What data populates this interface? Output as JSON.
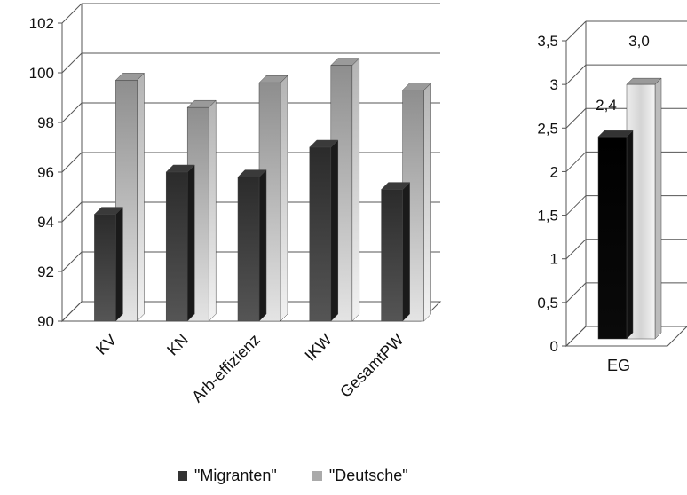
{
  "chart_data": [
    {
      "type": "bar",
      "categories": [
        "KV",
        "KN",
        "Arb-effizienz",
        "IKW",
        "GesamtPW"
      ],
      "series": [
        {
          "name": "\"Migranten\"",
          "values": [
            94.3,
            96.0,
            95.8,
            97.0,
            95.3
          ]
        },
        {
          "name": "\"Deutsche\"",
          "values": [
            99.7,
            98.6,
            99.6,
            100.3,
            99.3
          ]
        }
      ],
      "ylim": [
        90,
        102
      ],
      "yticks": [
        "90",
        "92",
        "94",
        "96",
        "98",
        "100",
        "102"
      ],
      "grid": true,
      "legend_position": "bottom"
    },
    {
      "type": "bar",
      "categories": [
        "EG"
      ],
      "series": [
        {
          "name": "\"Migranten\"",
          "values": [
            2.4
          ],
          "label": "2,4"
        },
        {
          "name": "\"Deutsche\"",
          "values": [
            3.0
          ],
          "label": "3,0"
        }
      ],
      "ylim": [
        0,
        3.5
      ],
      "yticks": [
        "0",
        "0,5",
        "1",
        "1,5",
        "2",
        "2,5",
        "3",
        "3,5"
      ],
      "grid": true
    }
  ],
  "legend": {
    "items": [
      {
        "label": "\"Migranten\"",
        "color": "#333333"
      },
      {
        "label": "\"Deutsche\"",
        "color": "#aaaaaa"
      }
    ]
  }
}
